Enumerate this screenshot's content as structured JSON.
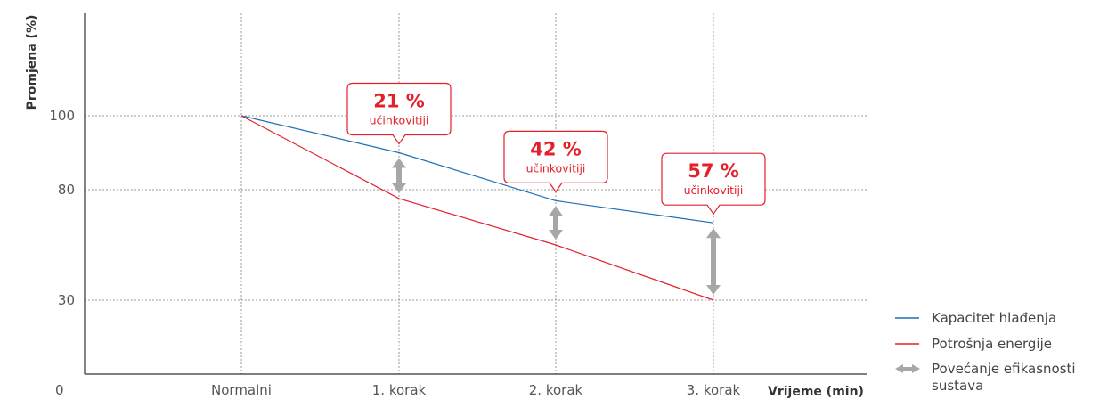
{
  "chart_data": {
    "type": "line",
    "title": "",
    "xlabel": "Vrijeme (min)",
    "ylabel": "Promjena (%)",
    "origin_label": "0",
    "x": [
      "Normalni",
      "1. korak",
      "2. korak",
      "3. korak"
    ],
    "yticks": [
      "100",
      "80",
      "30"
    ],
    "series": [
      {
        "name": "Kapacitet hlađenja",
        "color": "#1f6fb5",
        "values": [
          100,
          90,
          75,
          65
        ]
      },
      {
        "name": "Potrošnja energije",
        "color": "#e4202c",
        "values": [
          100,
          76,
          55,
          30
        ]
      }
    ],
    "arrow_legend": {
      "name": "Povećanje efikasnosti sustava",
      "color": "#a7a7a7"
    },
    "annotations": [
      {
        "x": "1. korak",
        "value": "21 %",
        "text": "učinkovitiji"
      },
      {
        "x": "2. korak",
        "value": "42 %",
        "text": "učinkovitiji"
      },
      {
        "x": "3. korak",
        "value": "57 %",
        "text": "učinkovitiji"
      }
    ],
    "grid": true,
    "legend_position": "bottom-right"
  }
}
